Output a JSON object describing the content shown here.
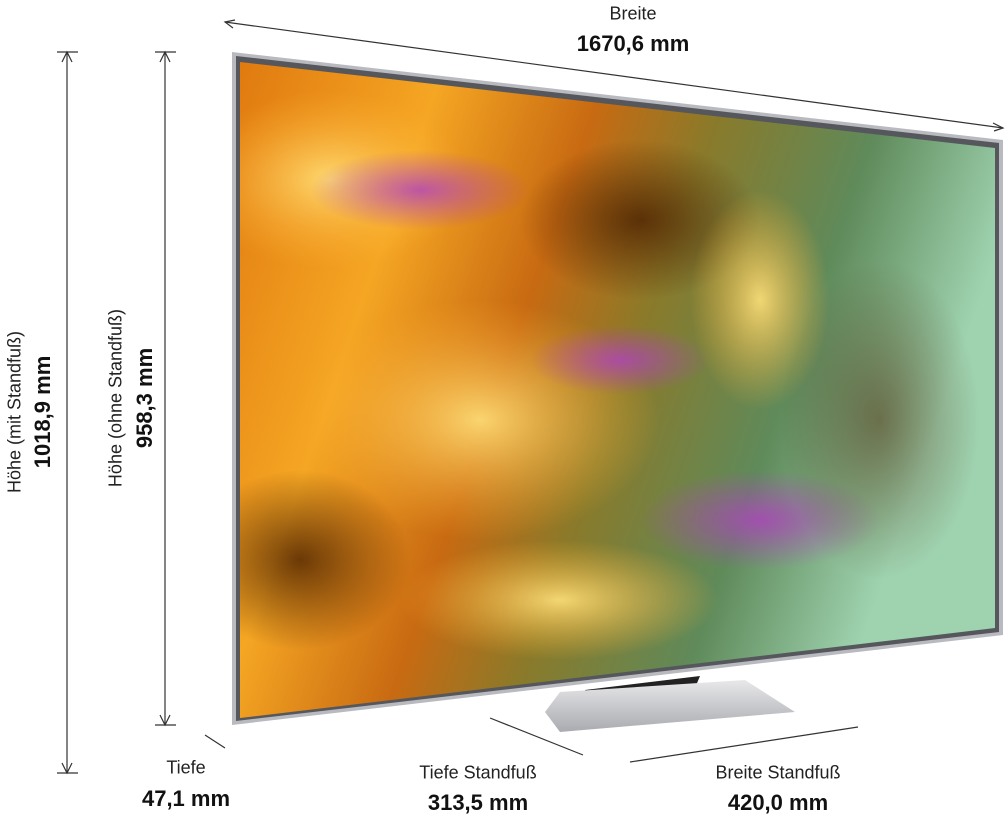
{
  "dimensions": [
    {
      "label": "Breite",
      "value": "1670,6 mm"
    },
    {
      "label": "Höhe (mit Standfuß)",
      "value": "1018,9 mm"
    },
    {
      "label": "Höhe (ohne Standfuß)",
      "value": "958,3 mm"
    },
    {
      "label": "Tiefe",
      "value": "47,1 mm"
    },
    {
      "label": "Tiefe Standfuß",
      "value": "313,5 mm"
    },
    {
      "label": "Breite Standfuß",
      "value": "420,0 mm"
    }
  ]
}
